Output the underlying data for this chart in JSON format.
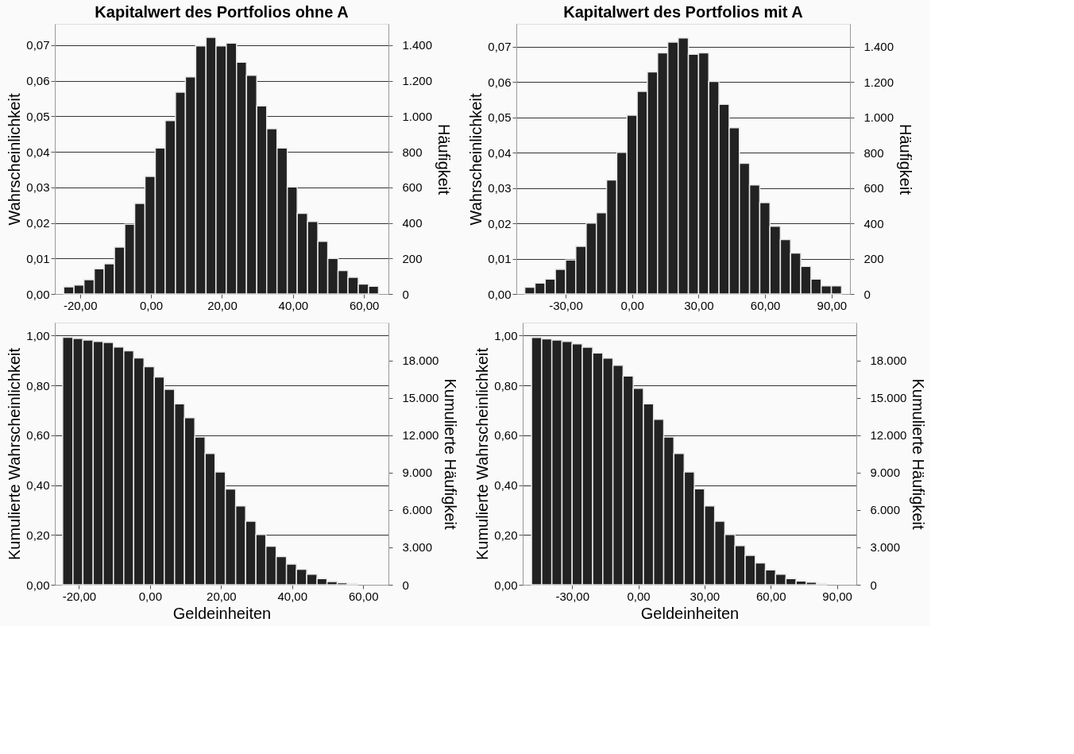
{
  "chart_data": [
    {
      "type": "histogram",
      "title": "Kapitalwert des Portfolios ohne A",
      "ylabel": "Wahrscheinlichkeit",
      "y2label": "Häufigkeit",
      "color": "#222222",
      "grid": "y",
      "bins": [
        -24.6,
        -21.7,
        -18.9,
        -16.0,
        -13.2,
        -10.3,
        -7.4,
        -4.6,
        -1.7,
        1.2,
        4.0,
        6.9,
        9.7,
        12.6,
        15.5,
        18.3,
        21.2,
        24.1,
        26.9,
        29.8,
        32.6,
        35.5,
        38.4,
        41.2,
        44.1,
        47.0,
        49.8,
        52.7,
        55.5,
        58.4,
        61.3,
        64.1
      ],
      "values": [
        0.002,
        0.0025,
        0.004,
        0.0071,
        0.0085,
        0.0132,
        0.0196,
        0.0255,
        0.0331,
        0.0411,
        0.0488,
        0.0568,
        0.0611,
        0.0698,
        0.0722,
        0.0698,
        0.0706,
        0.0652,
        0.0615,
        0.0529,
        0.0465,
        0.0411,
        0.0301,
        0.0227,
        0.0204,
        0.0148,
        0.01,
        0.0066,
        0.0047,
        0.0028,
        0.0022
      ],
      "xlim": [
        -27.1,
        66.9
      ],
      "xticks": [
        {
          "value": -20,
          "label": "-20,00"
        },
        {
          "value": 0,
          "label": "0,00"
        },
        {
          "value": 20,
          "label": "20,00"
        },
        {
          "value": 40,
          "label": "40,00"
        },
        {
          "value": 60,
          "label": "60,00"
        }
      ],
      "ylim": [
        0,
        0.076
      ],
      "yticks": [
        {
          "value": 0,
          "label": "0,00"
        },
        {
          "value": 0.01,
          "label": "0,01"
        },
        {
          "value": 0.02,
          "label": "0,02"
        },
        {
          "value": 0.03,
          "label": "0,03"
        },
        {
          "value": 0.04,
          "label": "0,04"
        },
        {
          "value": 0.05,
          "label": "0,05"
        },
        {
          "value": 0.06,
          "label": "0,06"
        },
        {
          "value": 0.07,
          "label": "0,07"
        }
      ],
      "y2lim": [
        0,
        1520
      ],
      "y2ticks": [
        0,
        200,
        400,
        600,
        800,
        {
          "value": 1000,
          "label": "1.000"
        },
        {
          "value": 1200,
          "label": "1.200"
        },
        {
          "value": 1400,
          "label": "1.400"
        }
      ]
    },
    {
      "type": "histogram",
      "title": "Kapitalwert des Portfolios mit A",
      "ylabel": "Wahrscheinlichkeit",
      "y2label": "Häufigkeit",
      "color": "#222222",
      "grid": "y",
      "bins": [
        -48.4,
        -43.8,
        -39.2,
        -34.6,
        -30.0,
        -25.4,
        -20.7,
        -16.1,
        -11.5,
        -6.9,
        -2.3,
        2.3,
        6.9,
        11.5,
        16.1,
        20.8,
        25.4,
        30.0,
        34.6,
        39.2,
        43.8,
        48.4,
        53.0,
        57.6,
        62.2,
        66.9,
        71.5,
        76.1,
        80.7,
        85.3,
        89.9,
        94.5
      ],
      "values": [
        0.0019,
        0.0031,
        0.0042,
        0.007,
        0.0096,
        0.0135,
        0.0201,
        0.023,
        0.0323,
        0.0401,
        0.0506,
        0.0574,
        0.0629,
        0.0683,
        0.0713,
        0.0725,
        0.0679,
        0.0683,
        0.0602,
        0.0537,
        0.0471,
        0.037,
        0.0309,
        0.0259,
        0.0192,
        0.0154,
        0.0116,
        0.0078,
        0.0042,
        0.0023,
        0.0023
      ],
      "xlim": [
        -52.2,
        98.3
      ],
      "xticks": [
        {
          "value": -30,
          "label": "-30,00"
        },
        {
          "value": 0,
          "label": "0,00"
        },
        {
          "value": 30,
          "label": "30,00"
        },
        {
          "value": 60,
          "label": "60,00"
        },
        {
          "value": 90,
          "label": "90,00"
        }
      ],
      "ylim": [
        0,
        0.0765
      ],
      "yticks": [
        {
          "value": 0,
          "label": "0,00"
        },
        {
          "value": 0.01,
          "label": "0,01"
        },
        {
          "value": 0.02,
          "label": "0,02"
        },
        {
          "value": 0.03,
          "label": "0,03"
        },
        {
          "value": 0.04,
          "label": "0,04"
        },
        {
          "value": 0.05,
          "label": "0,05"
        },
        {
          "value": 0.06,
          "label": "0,06"
        },
        {
          "value": 0.07,
          "label": "0,07"
        }
      ],
      "y2lim": [
        0,
        1530
      ],
      "y2ticks": [
        0,
        200,
        400,
        600,
        800,
        {
          "value": 1000,
          "label": "1.000"
        },
        {
          "value": 1200,
          "label": "1.200"
        },
        {
          "value": 1400,
          "label": "1.400"
        }
      ]
    },
    {
      "type": "histogram",
      "xlabel": "Geldeinheiten",
      "ylabel": "Kumulierte Wahrscheinlichkeit",
      "y2label": "Kumulierte Häufigkeit",
      "color": "#222222",
      "grid": "y",
      "bins": [
        -24.6,
        -21.7,
        -18.9,
        -16.0,
        -13.2,
        -10.3,
        -7.4,
        -4.6,
        -1.7,
        1.2,
        4.0,
        6.9,
        9.7,
        12.6,
        15.5,
        18.3,
        21.2,
        24.1,
        26.9,
        29.8,
        32.6,
        35.5,
        38.4,
        41.2,
        44.1,
        47.0,
        49.8,
        52.7,
        55.5,
        58.4
      ],
      "values": [
        0.993,
        0.988,
        0.982,
        0.976,
        0.972,
        0.954,
        0.939,
        0.91,
        0.875,
        0.834,
        0.784,
        0.726,
        0.67,
        0.593,
        0.527,
        0.453,
        0.384,
        0.316,
        0.255,
        0.202,
        0.155,
        0.113,
        0.083,
        0.062,
        0.042,
        0.025,
        0.013,
        0.008,
        0.005
      ],
      "xlim": [
        -26.8,
        67.1
      ],
      "xticks": [
        {
          "value": -20,
          "label": "-20,00"
        },
        {
          "value": 0,
          "label": "0,00"
        },
        {
          "value": 20,
          "label": "20,00"
        },
        {
          "value": 40,
          "label": "40,00"
        },
        {
          "value": 60,
          "label": "60,00"
        }
      ],
      "ylim": [
        0,
        1.052
      ],
      "yticks": [
        {
          "value": 0,
          "label": "0,00"
        },
        {
          "value": 0.2,
          "label": "0,20"
        },
        {
          "value": 0.4,
          "label": "0,40"
        },
        {
          "value": 0.6,
          "label": "0,60"
        },
        {
          "value": 0.8,
          "label": "0,80"
        },
        {
          "value": 1.0,
          "label": "1,00"
        }
      ],
      "y2lim": [
        0,
        21040
      ],
      "y2ticks": [
        0,
        {
          "value": 3000,
          "label": "3.000"
        },
        {
          "value": 6000,
          "label": "6.000"
        },
        {
          "value": 9000,
          "label": "9.000"
        },
        {
          "value": 12000,
          "label": "12.000"
        },
        {
          "value": 15000,
          "label": "15.000"
        },
        {
          "value": 18000,
          "label": "18.000"
        }
      ]
    },
    {
      "type": "histogram",
      "xlabel": "Geldeinheiten",
      "ylabel": "Kumulierte Wahrscheinlichkeit",
      "y2label": "Kumulierte Häufigkeit",
      "color": "#222222",
      "grid": "y",
      "bins": [
        -48.4,
        -43.8,
        -39.2,
        -34.6,
        -30.0,
        -25.4,
        -20.7,
        -16.1,
        -11.5,
        -6.9,
        -2.3,
        2.3,
        6.9,
        11.5,
        16.1,
        20.8,
        25.4,
        30.0,
        34.6,
        39.2,
        43.8,
        48.4,
        53.0,
        57.6,
        62.2,
        66.9,
        71.5,
        76.1,
        80.7,
        85.3
      ],
      "values": [
        0.992,
        0.987,
        0.982,
        0.976,
        0.967,
        0.953,
        0.93,
        0.909,
        0.881,
        0.838,
        0.788,
        0.726,
        0.664,
        0.593,
        0.527,
        0.453,
        0.385,
        0.316,
        0.255,
        0.202,
        0.157,
        0.118,
        0.088,
        0.06,
        0.042,
        0.025,
        0.015,
        0.01,
        0.005
      ],
      "xlim": [
        -52.4,
        98.8
      ],
      "xticks": [
        {
          "value": -30,
          "label": "-30,00"
        },
        {
          "value": 0,
          "label": "0,00"
        },
        {
          "value": 30,
          "label": "30,00"
        },
        {
          "value": 60,
          "label": "60,00"
        },
        {
          "value": 90,
          "label": "90,00"
        }
      ],
      "ylim": [
        0,
        1.052
      ],
      "yticks": [
        {
          "value": 0,
          "label": "0,00"
        },
        {
          "value": 0.2,
          "label": "0,20"
        },
        {
          "value": 0.4,
          "label": "0,40"
        },
        {
          "value": 0.6,
          "label": "0,60"
        },
        {
          "value": 0.8,
          "label": "0,80"
        },
        {
          "value": 1.0,
          "label": "1,00"
        }
      ],
      "y2lim": [
        0,
        21040
      ],
      "y2ticks": [
        0,
        {
          "value": 3000,
          "label": "3.000"
        },
        {
          "value": 6000,
          "label": "6.000"
        },
        {
          "value": 9000,
          "label": "9.000"
        },
        {
          "value": 12000,
          "label": "12.000"
        },
        {
          "value": 15000,
          "label": "15.000"
        },
        {
          "value": 18000,
          "label": "18.000"
        }
      ]
    }
  ]
}
